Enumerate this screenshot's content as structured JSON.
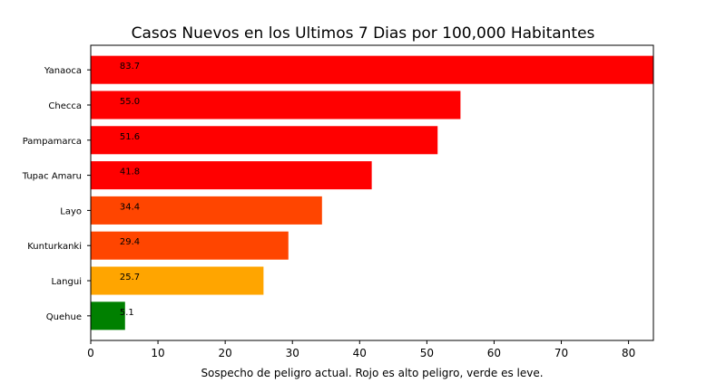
{
  "chart_data": {
    "type": "bar",
    "orientation": "horizontal",
    "title": "Casos Nuevos en los Ultimos 7 Dias por 100,000 Habitantes",
    "xlabel": "Sospecho de peligro actual. Rojo es alto peligro, verde es leve.",
    "ylabel": "",
    "categories": [
      "Yanaoca",
      "Checca",
      "Pampamarca",
      "Tupac Amaru",
      "Layo",
      "Kunturkanki",
      "Langui",
      "Quehue"
    ],
    "values": [
      83.7,
      55.0,
      51.6,
      41.8,
      34.4,
      29.4,
      25.7,
      5.1
    ],
    "value_labels": [
      "83.7",
      "55.0",
      "51.6",
      "41.8",
      "34.4",
      "29.4",
      "25.7",
      "5.1"
    ],
    "colors": [
      "#ff0000",
      "#ff0000",
      "#ff0000",
      "#ff0000",
      "#ff4500",
      "#ff4500",
      "#ffa500",
      "#008000"
    ],
    "xlim": [
      0,
      83.7
    ],
    "xticks": [
      0,
      10,
      20,
      30,
      40,
      50,
      60,
      70,
      80
    ],
    "xtick_labels": [
      "0",
      "10",
      "20",
      "30",
      "40",
      "50",
      "60",
      "70",
      "80"
    ],
    "grid": false,
    "legend": "none"
  }
}
